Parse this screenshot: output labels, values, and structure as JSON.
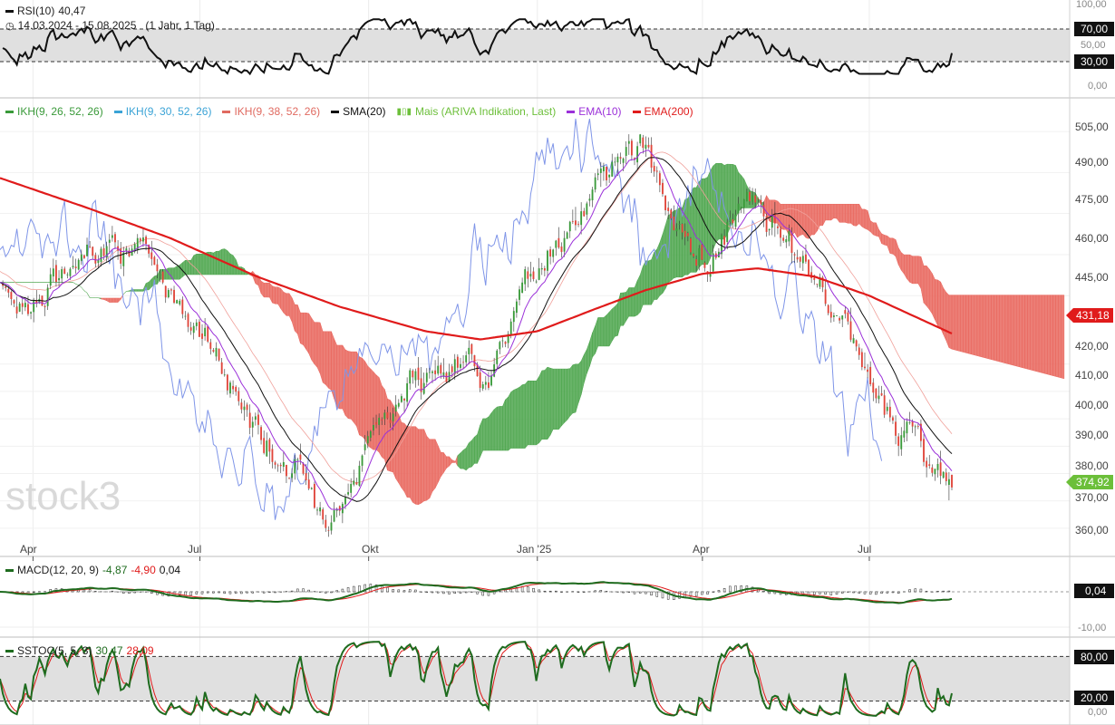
{
  "panels": {
    "rsi": {
      "label": "RSI(10)",
      "value": "40,47",
      "date_range": "14.03.2024 - 15.08.2025",
      "interval": "(1 Jahr, 1 Tag)",
      "y_ticks": [
        "100,00",
        "70,00",
        "50,00",
        "30,00",
        "0,00"
      ],
      "badges": {
        "upper": "70,00",
        "lower": "30,00"
      }
    },
    "main": {
      "legend": [
        {
          "label": "IKH(9, 26, 52, 26)",
          "color": "#3a9a3a"
        },
        {
          "label": "IKH(9, 30, 52, 26)",
          "color": "#3aa3d6"
        },
        {
          "label": "IKH(9, 38, 52, 26)",
          "color": "#e06a60"
        },
        {
          "label": "SMA(20)",
          "color": "#111111"
        },
        {
          "label": "Mais (ARIVA Indikation, Last)",
          "color": "#6cbf3a",
          "icon": "candlestick-icon"
        },
        {
          "label": "EMA(10)",
          "color": "#9b30d9"
        },
        {
          "label": "EMA(200)",
          "color": "#e01b1b"
        }
      ],
      "y_ticks": [
        "505,00",
        "490,00",
        "475,00",
        "460,00",
        "445,00",
        "420,00",
        "410,00",
        "400,00",
        "390,00",
        "380,00",
        "370,00",
        "360,00"
      ],
      "price_badges": {
        "ema200": "431,18",
        "last": "374,92"
      },
      "x_ticks": [
        "Apr",
        "Jul",
        "Okt",
        "Jan '25",
        "Apr",
        "Jul"
      ],
      "watermark": "stock3"
    },
    "macd": {
      "label": "MACD(12, 20, 9)",
      "value1": "-4,87",
      "value2": "-4,90",
      "value3": "0,04",
      "y_ticks": [
        "-10,00"
      ],
      "badge": "0,04"
    },
    "sstoc": {
      "label": "SSTOC(5, 5, 3)",
      "value1": "30,47",
      "value2": "28,09",
      "y_ticks": [
        "80,00",
        "20,00",
        "0,00"
      ],
      "badges": {
        "upper": "80,00",
        "lower": "20,00"
      }
    }
  },
  "colors": {
    "bull": "#3a9a3a",
    "bear": "#e0453a",
    "cloud_green": "#4ea64e",
    "cloud_red": "#e9675e",
    "sma": "#111111",
    "ema10": "#9b30d9",
    "ema200": "#e01b1b",
    "mais": "#7f95e8",
    "last_badge": "#6cbf3a",
    "ema200_badge": "#e01b1b"
  },
  "chart_data": [
    {
      "type": "line",
      "title": "RSI(10)",
      "ylim": [
        0,
        100
      ],
      "bands": [
        30,
        70
      ],
      "last": 40.47
    },
    {
      "type": "candlestick",
      "ylim": [
        355,
        510
      ],
      "x_range": [
        "14.03.2024",
        "15.08.2025"
      ],
      "x_ticks": [
        "Apr",
        "Jul",
        "Okt",
        "Jan '25",
        "Apr",
        "Jul"
      ],
      "y_ticks": [
        505,
        490,
        475,
        460,
        445,
        420,
        410,
        400,
        390,
        380,
        370,
        360
      ],
      "series": [
        {
          "name": "IKH(9, 26, 52, 26)",
          "type": "area"
        },
        {
          "name": "IKH(9, 30, 52, 26)",
          "type": "area"
        },
        {
          "name": "IKH(9, 38, 52, 26)",
          "type": "area"
        },
        {
          "name": "SMA(20)",
          "type": "line"
        },
        {
          "name": "Mais (ARIVA Indikation, Last)",
          "type": "line"
        },
        {
          "name": "EMA(10)",
          "type": "line"
        },
        {
          "name": "EMA(200)",
          "type": "line",
          "last": 431.18
        }
      ],
      "last_price": 374.92,
      "close_path": [
        [
          "2024-03-14",
          448
        ],
        [
          "2024-04-01",
          443
        ],
        [
          "2024-04-25",
          455
        ],
        [
          "2024-05-10",
          468
        ],
        [
          "2024-05-28",
          462
        ],
        [
          "2024-06-15",
          445
        ],
        [
          "2024-07-01",
          435
        ],
        [
          "2024-07-20",
          410
        ],
        [
          "2024-08-10",
          390
        ],
        [
          "2024-09-01",
          372
        ],
        [
          "2024-09-15",
          370
        ],
        [
          "2024-10-01",
          392
        ],
        [
          "2024-10-20",
          410
        ],
        [
          "2024-11-10",
          415
        ],
        [
          "2024-12-01",
          420
        ],
        [
          "2024-12-20",
          440
        ],
        [
          "2025-01-15",
          470
        ],
        [
          "2025-02-05",
          488
        ],
        [
          "2025-02-20",
          500
        ],
        [
          "2025-03-05",
          492
        ],
        [
          "2025-03-20",
          468
        ],
        [
          "2025-04-05",
          455
        ],
        [
          "2025-04-20",
          478
        ],
        [
          "2025-05-05",
          472
        ],
        [
          "2025-05-20",
          455
        ],
        [
          "2025-06-05",
          448
        ],
        [
          "2025-06-20",
          430
        ],
        [
          "2025-07-05",
          408
        ],
        [
          "2025-07-20",
          400
        ],
        [
          "2025-08-01",
          390
        ],
        [
          "2025-08-15",
          374.92
        ]
      ],
      "ema200_path": [
        [
          "2024-03-14",
          488
        ],
        [
          "2024-05-01",
          477
        ],
        [
          "2024-06-15",
          466
        ],
        [
          "2024-08-01",
          452
        ],
        [
          "2024-09-15",
          441
        ],
        [
          "2024-11-01",
          432
        ],
        [
          "2024-12-01",
          429
        ],
        [
          "2025-01-01",
          432
        ],
        [
          "2025-02-01",
          440
        ],
        [
          "2025-03-01",
          447
        ],
        [
          "2025-04-01",
          453
        ],
        [
          "2025-05-01",
          455
        ],
        [
          "2025-06-01",
          452
        ],
        [
          "2025-07-01",
          445
        ],
        [
          "2025-08-15",
          431.18
        ]
      ]
    },
    {
      "type": "line",
      "title": "MACD(12, 20, 9)",
      "series": [
        {
          "name": "MACD",
          "last": -4.87
        },
        {
          "name": "Signal",
          "last": -4.9
        },
        {
          "name": "Histogram",
          "last": 0.04
        }
      ],
      "y_ticks": [
        -10
      ]
    },
    {
      "type": "line",
      "title": "SSTOC(5, 5, 3)",
      "ylim": [
        0,
        100
      ],
      "bands": [
        20,
        80
      ],
      "series": [
        {
          "name": "%K",
          "last": 30.47
        },
        {
          "name": "%D",
          "last": 28.09
        }
      ]
    }
  ]
}
